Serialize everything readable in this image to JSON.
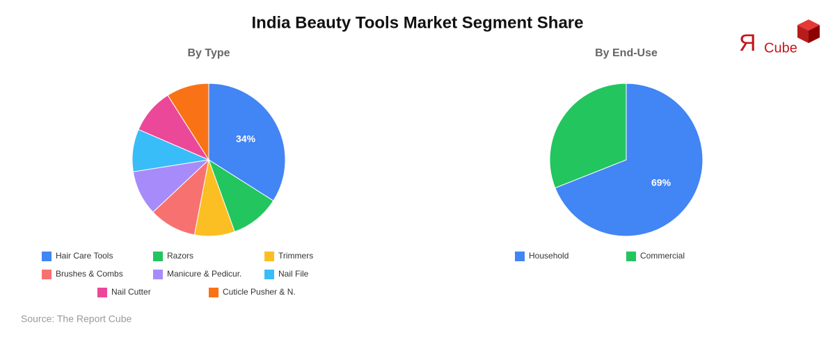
{
  "title": "India Beauty Tools Market Segment Share",
  "logo": {
    "mark": "Я",
    "text": "Cube"
  },
  "source": "Source: The Report Cube",
  "chart_data": [
    {
      "type": "pie",
      "title": "By Type",
      "categories": [
        "Hair Care Tools",
        "Razors",
        "Trimmers",
        "Brushes & Combs",
        "Manicure & Pedicur.",
        "Nail File",
        "Nail Cutter",
        "Cuticle Pusher & N."
      ],
      "values": [
        34,
        10.5,
        8.5,
        10,
        9.5,
        9,
        9.5,
        9
      ],
      "value_labels": [
        "34%",
        null,
        null,
        null,
        null,
        null,
        null,
        null
      ],
      "colors": [
        "#4285f4",
        "#22c55e",
        "#fbbf24",
        "#f87171",
        "#a78bfa",
        "#38bdf8",
        "#ec4899",
        "#f97316"
      ]
    },
    {
      "type": "pie",
      "title": "By End-Use",
      "categories": [
        "Household",
        "Commercial"
      ],
      "values": [
        69,
        31
      ],
      "value_labels": [
        "69%",
        null
      ],
      "colors": [
        "#4285f4",
        "#22c55e"
      ]
    }
  ]
}
